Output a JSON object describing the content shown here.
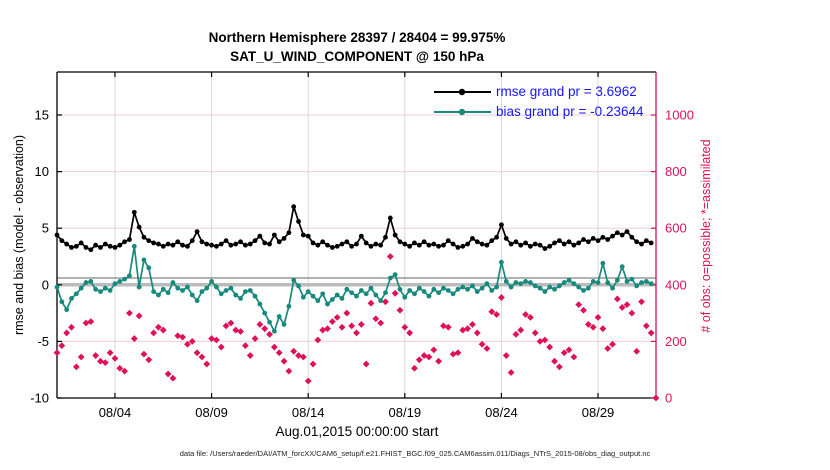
{
  "header": {
    "title_line1": "Northern Hemisphere 28397 / 28404 = 99.975%",
    "title_line2": "SAT_U_WIND_COMPONENT @ 150 hPa"
  },
  "footer": {
    "data_file_note": "data file: /Users/raeder/DAI/ATM_forcXX/CAM6_setup/f.e21.FHIST_BGC.f09_025.CAM6assim.011/Diags_NTrS_2015-08/obs_diag_output.nc"
  },
  "chart_data": {
    "type": "line",
    "title": "Northern Hemisphere 28397 / 28404 = 99.975%  SAT_U_WIND_COMPONENT @ 150 hPa",
    "xlabel": "Aug.01,2015 00:00:00 start",
    "ylabel_left": "rmse and bias (model - observation)",
    "ylabel_right": "# of obs: o=possible; *=assimilated",
    "x_step_days": 0.25,
    "xlim_days": [
      0,
      31
    ],
    "xticks": [
      {
        "day": 3,
        "label": "08/04"
      },
      {
        "day": 8,
        "label": "08/09"
      },
      {
        "day": 13,
        "label": "08/14"
      },
      {
        "day": 18,
        "label": "08/19"
      },
      {
        "day": 23,
        "label": "08/24"
      },
      {
        "day": 28,
        "label": "08/29"
      }
    ],
    "ylim_left": [
      -10,
      18.8
    ],
    "yticks_left": [
      -10,
      -5,
      0,
      5,
      10,
      15
    ],
    "ylim_right": [
      0,
      1152
    ],
    "yticks_right": [
      0,
      200,
      400,
      600,
      800,
      1000
    ],
    "grid": {
      "vertical_color": "#d8d8d8",
      "horizontal_color": "#f3ccd7"
    },
    "reference_lines": [
      {
        "y_left": 0.0,
        "color": "#bbbbbb",
        "width": 3.5
      },
      {
        "y_left": 0.6,
        "color": "#666666",
        "width": 1
      }
    ],
    "colors": {
      "rmse": "#000000",
      "bias": "#178a7d",
      "obs": "#de1159",
      "legend_text": "#1515ff",
      "right_axis": "#de1159",
      "left_axis": "#000000"
    },
    "legend": [
      {
        "label": "rmse grand pr = 3.6962",
        "color": "#000000",
        "marker": "circle"
      },
      {
        "label": "bias grand pr = -0.23644",
        "color": "#178a7d",
        "marker": "circle"
      }
    ],
    "series": [
      {
        "name": "rmse",
        "axis": "left",
        "color": "#000000",
        "marker": "circle",
        "line": true,
        "values": [
          4.4,
          3.9,
          3.6,
          3.3,
          3.4,
          3.7,
          3.3,
          3.1,
          3.5,
          3.3,
          3.6,
          3.4,
          3.3,
          3.5,
          3.8,
          4.0,
          6.4,
          5.1,
          4.2,
          3.9,
          3.7,
          3.6,
          3.4,
          3.6,
          3.5,
          3.8,
          3.5,
          3.4,
          3.9,
          4.7,
          3.8,
          3.6,
          3.5,
          3.4,
          3.6,
          3.9,
          3.5,
          3.6,
          3.8,
          3.5,
          3.6,
          3.9,
          4.3,
          3.7,
          3.6,
          4.4,
          3.8,
          4.1,
          4.6,
          6.9,
          5.6,
          4.4,
          4.3,
          3.7,
          3.5,
          3.8,
          3.5,
          3.3,
          3.4,
          3.6,
          3.8,
          3.4,
          3.6,
          4.3,
          3.7,
          3.4,
          3.6,
          3.5,
          4.2,
          5.9,
          4.4,
          3.8,
          3.6,
          3.4,
          3.7,
          3.5,
          3.8,
          3.5,
          3.6,
          3.4,
          3.5,
          3.9,
          3.6,
          3.3,
          3.4,
          3.6,
          4.1,
          3.8,
          3.6,
          3.5,
          3.9,
          4.2,
          5.3,
          4.1,
          3.6,
          3.8,
          3.5,
          3.7,
          3.4,
          3.6,
          3.5,
          3.2,
          3.4,
          3.7,
          3.9,
          3.6,
          3.8,
          3.5,
          3.7,
          4.0,
          3.8,
          4.1,
          3.9,
          4.2,
          4.0,
          4.3,
          4.6,
          4.4,
          4.7,
          4.2,
          3.8,
          3.6,
          3.9,
          3.7
        ]
      },
      {
        "name": "bias",
        "axis": "left",
        "color": "#178a7d",
        "marker": "circle",
        "line": true,
        "values": [
          -0.2,
          -1.5,
          -2.2,
          -1.2,
          -0.8,
          -0.3,
          0.2,
          0.3,
          -0.4,
          -0.6,
          -0.3,
          -0.5,
          0.1,
          0.3,
          0.5,
          0.8,
          3.4,
          -0.2,
          2.2,
          1.5,
          -0.6,
          -0.9,
          -0.4,
          -0.7,
          0.2,
          -0.3,
          -0.5,
          -0.2,
          -0.9,
          -1.4,
          -0.6,
          -0.3,
          0.3,
          -0.2,
          -0.8,
          -0.5,
          -0.3,
          -0.9,
          -1.2,
          -0.6,
          -0.5,
          -1.0,
          -1.7,
          -2.5,
          -3.3,
          -4.1,
          -2.8,
          -3.5,
          -1.9,
          0.4,
          -0.1,
          -1.1,
          -0.6,
          -1.0,
          -1.4,
          -0.8,
          -1.7,
          -1.3,
          -0.9,
          -1.2,
          -0.4,
          -0.7,
          -1.0,
          -0.5,
          -0.8,
          -0.3,
          -0.9,
          -1.4,
          -0.7,
          0.6,
          0.9,
          -0.4,
          -1.1,
          -0.5,
          -0.8,
          -0.3,
          -0.6,
          -1.0,
          -0.4,
          -0.7,
          -0.3,
          -0.5,
          -0.8,
          -0.4,
          -0.2,
          -0.4,
          -0.1,
          -0.6,
          -0.3,
          0.1,
          -0.5,
          -0.2,
          2.0,
          0.3,
          -0.2,
          0.2,
          0.1,
          0.3,
          0.2,
          -0.1,
          -0.3,
          -0.6,
          -0.2,
          -0.4,
          -0.1,
          0.2,
          0.4,
          0.1,
          -0.2,
          -0.5,
          -0.3,
          0.3,
          0.2,
          1.9,
          0.2,
          -0.3,
          0.4,
          1.6,
          0.3,
          0.5,
          -0.1,
          0.2,
          0.3,
          0.1
        ]
      },
      {
        "name": "obs_assimilated",
        "axis": "right",
        "color": "#de1159",
        "marker": "diamond",
        "line": false,
        "values": [
          160,
          185,
          230,
          250,
          110,
          145,
          265,
          270,
          150,
          130,
          125,
          160,
          140,
          105,
          95,
          300,
          210,
          290,
          155,
          135,
          230,
          250,
          240,
          85,
          70,
          220,
          215,
          190,
          200,
          160,
          145,
          120,
          210,
          205,
          180,
          255,
          265,
          240,
          235,
          185,
          150,
          210,
          260,
          245,
          225,
          180,
          160,
          130,
          95,
          165,
          150,
          145,
          60,
          120,
          205,
          240,
          245,
          270,
          285,
          250,
          300,
          255,
          230,
          260,
          120,
          335,
          280,
          265,
          340,
          500,
          370,
          310,
          250,
          230,
          105,
          135,
          150,
          145,
          170,
          130,
          255,
          250,
          155,
          160,
          240,
          245,
          260,
          230,
          190,
          175,
          305,
          295,
          355,
          150,
          90,
          225,
          240,
          295,
          285,
          230,
          200,
          205,
          180,
          130,
          110,
          160,
          170,
          145,
          330,
          310,
          260,
          250,
          285,
          245,
          175,
          190,
          350,
          320,
          330,
          300,
          165,
          340,
          255,
          230,
          0
        ]
      }
    ]
  }
}
